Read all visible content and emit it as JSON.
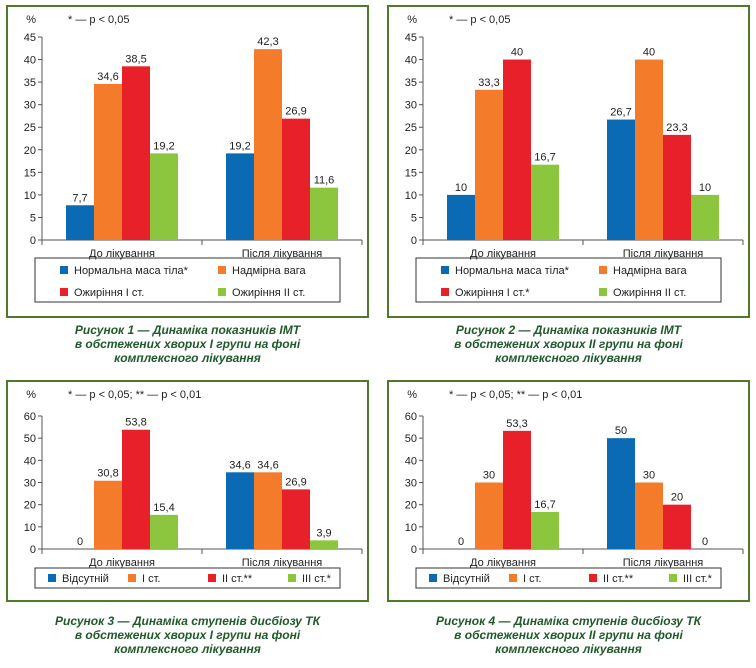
{
  "colors": {
    "blue": "#0a6ab3",
    "orange": "#f47b2a",
    "red": "#e8202a",
    "green": "#8cc63e",
    "frame": "#4f7a2e",
    "caption": "#1f5a2a"
  },
  "chart_data": [
    {
      "type": "bar",
      "ylabel": "%",
      "note": "* — p < 0,05",
      "ylim": [
        0,
        45
      ],
      "yticks": [
        "0",
        "5",
        "10",
        "15",
        "20",
        "25",
        "30",
        "35",
        "40",
        "45"
      ],
      "categories": [
        "До лікування",
        "Після лікування"
      ],
      "series": [
        {
          "name": "Нормальна маса тіла*",
          "color": "blue",
          "values": [
            7.7,
            19.2
          ],
          "labels": [
            "7,7",
            "19,2"
          ]
        },
        {
          "name": "Надмірна вага",
          "color": "orange",
          "values": [
            34.6,
            42.3
          ],
          "labels": [
            "34,6",
            "42,3"
          ]
        },
        {
          "name": "Ожиріння І ст.",
          "color": "red",
          "values": [
            38.5,
            26.9
          ],
          "labels": [
            "38,5",
            "26,9"
          ]
        },
        {
          "name": "Ожиріння ІІ ст.",
          "color": "green",
          "values": [
            19.2,
            11.6
          ],
          "labels": [
            "19,2",
            "11,6"
          ]
        }
      ],
      "legend": "bottom",
      "caption": [
        "Рисунок 1 — Динаміка показників ІМТ",
        "в обстежених хворих І групи на фоні",
        "комплексного лікування"
      ]
    },
    {
      "type": "bar",
      "ylabel": "%",
      "note": "* — p < 0,05",
      "ylim": [
        0,
        45
      ],
      "yticks": [
        "0",
        "5",
        "10",
        "15",
        "20",
        "25",
        "30",
        "35",
        "40",
        "45"
      ],
      "categories": [
        "До лікування",
        "Після лікування"
      ],
      "series": [
        {
          "name": "Нормальна маса тіла*",
          "color": "blue",
          "values": [
            10,
            26.7
          ],
          "labels": [
            "10",
            "26,7"
          ]
        },
        {
          "name": "Надмірна вага",
          "color": "orange",
          "values": [
            33.3,
            40
          ],
          "labels": [
            "33,3",
            "40"
          ]
        },
        {
          "name": "Ожиріння І ст.*",
          "color": "red",
          "values": [
            40,
            23.3
          ],
          "labels": [
            "40",
            "23,3"
          ]
        },
        {
          "name": "Ожиріння ІІ ст.",
          "color": "green",
          "values": [
            16.7,
            10
          ],
          "labels": [
            "16,7",
            "10"
          ]
        }
      ],
      "legend": "bottom",
      "caption": [
        "Рисунок 2 — Динаміка показників ІМТ",
        "в обстежених хворих ІІ групи на фоні",
        "комплексного лікування"
      ]
    },
    {
      "type": "bar",
      "ylabel": "%",
      "note": "* — p < 0,05;     ** — p < 0,01",
      "ylim": [
        0,
        60
      ],
      "yticks": [
        "0",
        "10",
        "20",
        "30",
        "40",
        "50",
        "60"
      ],
      "categories": [
        "До лікування",
        "Після лікування"
      ],
      "series": [
        {
          "name": "Відсутній",
          "color": "blue",
          "values": [
            0,
            34.6
          ],
          "labels": [
            "0",
            "34,6"
          ]
        },
        {
          "name": "І ст.",
          "color": "orange",
          "values": [
            30.8,
            34.6
          ],
          "labels": [
            "30,8",
            "34,6"
          ]
        },
        {
          "name": "ІІ ст.**",
          "color": "red",
          "values": [
            53.8,
            26.9
          ],
          "labels": [
            "53,8",
            "26,9"
          ]
        },
        {
          "name": "ІІІ ст.*",
          "color": "green",
          "values": [
            15.4,
            3.9
          ],
          "labels": [
            "15,4",
            "3,9"
          ]
        }
      ],
      "legend": "bottom",
      "caption": [
        "Рисунок 3 — Динаміка ступенів дисбіозу ТК",
        "в обстежених хворих І групи на фоні",
        "комплексного лікування"
      ]
    },
    {
      "type": "bar",
      "ylabel": "%",
      "note": "* — p < 0,05;     ** — p < 0,01",
      "ylim": [
        0,
        60
      ],
      "yticks": [
        "0",
        "10",
        "20",
        "30",
        "40",
        "50",
        "60"
      ],
      "categories": [
        "До лікування",
        "Після лікування"
      ],
      "series": [
        {
          "name": "Відсутній",
          "color": "blue",
          "values": [
            0,
            50
          ],
          "labels": [
            "0",
            "50"
          ]
        },
        {
          "name": "І ст.",
          "color": "orange",
          "values": [
            30,
            30
          ],
          "labels": [
            "30",
            "30"
          ]
        },
        {
          "name": "ІІ ст.**",
          "color": "red",
          "values": [
            53.3,
            20
          ],
          "labels": [
            "53,3",
            "20"
          ]
        },
        {
          "name": "ІІІ ст.*",
          "color": "green",
          "values": [
            16.7,
            0
          ],
          "labels": [
            "16,7",
            "0"
          ]
        }
      ],
      "legend": "bottom",
      "caption": [
        "Рисунок 4 — Динаміка ступенів дисбіозу ТК",
        "в обстежених хворих ІІ групи на фоні",
        "комплексного лікування"
      ]
    }
  ]
}
